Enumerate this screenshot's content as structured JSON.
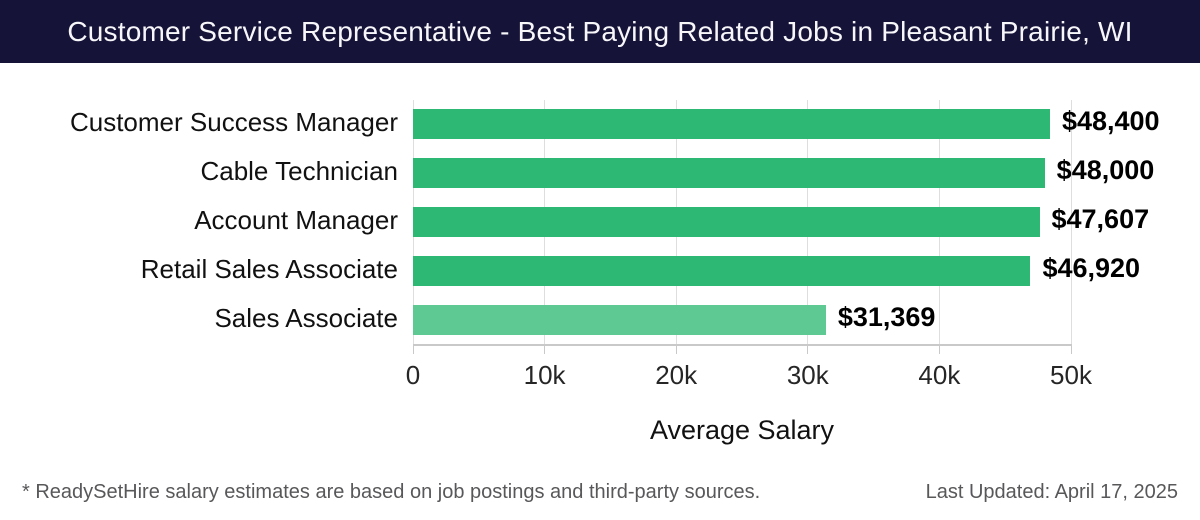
{
  "header": {
    "title": "Customer Service Representative - Best Paying Related Jobs in Pleasant Prairie, WI"
  },
  "chart_data": {
    "type": "bar",
    "orientation": "horizontal",
    "categories": [
      "Customer Success Manager",
      "Cable Technician",
      "Account Manager",
      "Retail Sales Associate",
      "Sales Associate"
    ],
    "values": [
      48400,
      48000,
      47607,
      46920,
      31369
    ],
    "value_labels": [
      "$48,400",
      "$48,000",
      "$47,607",
      "$46,920",
      "$31,369"
    ],
    "bar_colors": [
      "#2db873",
      "#2db873",
      "#2db873",
      "#2db873",
      "#5fc993"
    ],
    "xlabel": "Average Salary",
    "xlim": [
      0,
      50000
    ],
    "xticks": [
      0,
      10000,
      20000,
      30000,
      40000,
      50000
    ],
    "xtick_labels": [
      "0",
      "10k",
      "20k",
      "30k",
      "40k",
      "50k"
    ],
    "grid": true,
    "legend_position": "none"
  },
  "footer": {
    "note": "* ReadySetHire salary estimates are based on job postings and third-party sources.",
    "updated": "Last Updated: April 17, 2025"
  },
  "colors": {
    "header_bg": "#161339",
    "header_text": "#f7f7fa",
    "bar_green": "#2db873",
    "bar_green_light": "#5fc993",
    "gridline": "#dedede",
    "axis": "#c9c9c9",
    "footer_text": "#58585a"
  }
}
